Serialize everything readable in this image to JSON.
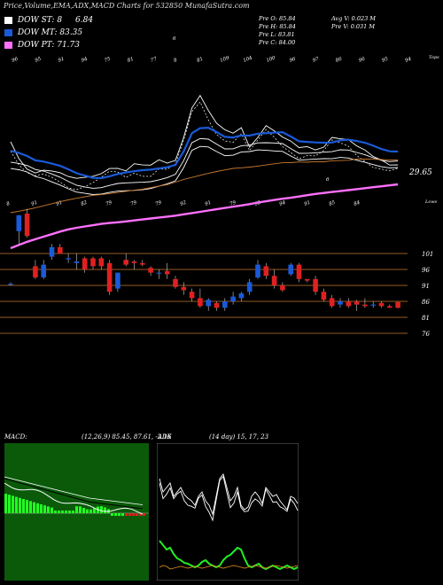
{
  "header": {
    "title": "Price,Volume,EMA,ADX,MACD Charts for 532850",
    "site": "MunafaSutra.com"
  },
  "legend": [
    {
      "label": "DOW ST: 8",
      "value": "6.84",
      "color": "#ffffff"
    },
    {
      "label": "DOW MT: 83.35",
      "value": "",
      "color": "#1a5ad8"
    },
    {
      "label": "DOW PT: 71.73",
      "value": "",
      "color": "#ff70ff"
    }
  ],
  "info": {
    "left": [
      "Pre  O: 85.84",
      "Pre  H: 85.84",
      "Pre  L: 83.81",
      "Pre  C: 84.00"
    ],
    "right": [
      "Avg V: 0.023 M",
      "Pre  V: 0.031 M"
    ]
  },
  "colors": {
    "ema_short": "#ffffff",
    "ema_mt": "#1a5ad8",
    "ema_pt": "#ff70ff",
    "ema_long": "#c77a30",
    "bull": "#1a5ad8",
    "bear": "#e02020",
    "level_line": "#c77a30",
    "macd_bg": "#0a5a0a",
    "macd_hist": "#22ff22",
    "adx_green": "#22ee22",
    "adx_orange": "#e08a20"
  },
  "chart_data": [
    {
      "type": "candlestick",
      "name": "price",
      "price_labels": [
        "101",
        "96",
        "91",
        "86",
        "81",
        "76"
      ],
      "volume_label_top": "29.65",
      "top_number_labels": [
        "96",
        "95",
        "91",
        "94",
        "75",
        "81",
        "77",
        "8",
        "81",
        "109",
        "104",
        "100",
        "96",
        "97",
        "86",
        "96",
        "95",
        "94"
      ],
      "top_extra_labels": [
        "6",
        "Tops"
      ],
      "mid_number_labels": [
        "8",
        "91",
        "91",
        "82",
        "79",
        "79",
        "79",
        "92",
        "91",
        "79",
        "92",
        "94",
        "91",
        "85",
        "84"
      ],
      "mid_extra_labels": [
        "6",
        "Lows"
      ],
      "candles": [
        {
          "o": 91.5,
          "h": 92.0,
          "l": 91.0,
          "c": 91.5
        },
        {
          "o": 108.0,
          "h": 113.0,
          "l": 104.0,
          "c": 113.0
        },
        {
          "o": 113.5,
          "h": 115.0,
          "l": 106.0,
          "c": 106.5
        },
        {
          "o": 97.0,
          "h": 99.0,
          "l": 93.0,
          "c": 93.5
        },
        {
          "o": 93.5,
          "h": 99.0,
          "l": 93.0,
          "c": 97.5
        },
        {
          "o": 100.0,
          "h": 104.0,
          "l": 99.0,
          "c": 103.0
        },
        {
          "o": 103.0,
          "h": 104.0,
          "l": 101.0,
          "c": 101.0
        },
        {
          "o": 99.5,
          "h": 101.0,
          "l": 98.0,
          "c": 99.5
        },
        {
          "o": 98.0,
          "h": 101.0,
          "l": 96.0,
          "c": 98.5
        },
        {
          "o": 99.5,
          "h": 100.0,
          "l": 95.0,
          "c": 96.0
        },
        {
          "o": 99.5,
          "h": 100.0,
          "l": 96.0,
          "c": 97.0
        },
        {
          "o": 99.5,
          "h": 100.0,
          "l": 96.0,
          "c": 97.0
        },
        {
          "o": 98.0,
          "h": 99.0,
          "l": 88.0,
          "c": 89.0
        },
        {
          "o": 90.0,
          "h": 95.0,
          "l": 89.0,
          "c": 95.0
        },
        {
          "o": 99.0,
          "h": 101.0,
          "l": 97.0,
          "c": 97.5
        },
        {
          "o": 98.5,
          "h": 99.0,
          "l": 96.0,
          "c": 98.0
        },
        {
          "o": 98.0,
          "h": 99.0,
          "l": 97.0,
          "c": 97.5
        },
        {
          "o": 96.5,
          "h": 97.0,
          "l": 94.0,
          "c": 95.0
        },
        {
          "o": 95.0,
          "h": 96.0,
          "l": 93.0,
          "c": 95.0
        },
        {
          "o": 95.5,
          "h": 98.0,
          "l": 93.0,
          "c": 94.5
        },
        {
          "o": 93.0,
          "h": 94.0,
          "l": 90.0,
          "c": 90.5
        },
        {
          "o": 90.5,
          "h": 92.0,
          "l": 88.0,
          "c": 89.5
        },
        {
          "o": 89.0,
          "h": 90.0,
          "l": 86.0,
          "c": 87.0
        },
        {
          "o": 87.0,
          "h": 90.0,
          "l": 84.0,
          "c": 84.5
        },
        {
          "o": 84.5,
          "h": 87.0,
          "l": 83.0,
          "c": 86.5
        },
        {
          "o": 85.5,
          "h": 86.0,
          "l": 83.0,
          "c": 84.0
        },
        {
          "o": 84.0,
          "h": 87.0,
          "l": 83.0,
          "c": 86.0
        },
        {
          "o": 86.0,
          "h": 89.0,
          "l": 85.0,
          "c": 87.5
        },
        {
          "o": 87.0,
          "h": 89.0,
          "l": 86.0,
          "c": 88.5
        },
        {
          "o": 89.0,
          "h": 93.0,
          "l": 88.0,
          "c": 92.0
        },
        {
          "o": 93.5,
          "h": 99.0,
          "l": 93.0,
          "c": 97.5
        },
        {
          "o": 97.0,
          "h": 98.0,
          "l": 93.0,
          "c": 94.0
        },
        {
          "o": 94.0,
          "h": 96.0,
          "l": 90.0,
          "c": 91.0
        },
        {
          "o": 91.0,
          "h": 92.0,
          "l": 89.0,
          "c": 89.5
        },
        {
          "o": 94.5,
          "h": 98.0,
          "l": 94.0,
          "c": 97.5
        },
        {
          "o": 97.5,
          "h": 98.0,
          "l": 92.0,
          "c": 93.0
        },
        {
          "o": 93.0,
          "h": 93.0,
          "l": 92.0,
          "c": 92.5
        },
        {
          "o": 93.0,
          "h": 94.0,
          "l": 88.0,
          "c": 89.0
        },
        {
          "o": 89.0,
          "h": 90.0,
          "l": 86.0,
          "c": 86.5
        },
        {
          "o": 87.0,
          "h": 88.0,
          "l": 84.0,
          "c": 84.5
        },
        {
          "o": 85.0,
          "h": 87.0,
          "l": 84.0,
          "c": 86.0
        },
        {
          "o": 86.0,
          "h": 87.0,
          "l": 84.0,
          "c": 84.5
        },
        {
          "o": 86.0,
          "h": 86.5,
          "l": 83.0,
          "c": 85.0
        },
        {
          "o": 85.0,
          "h": 87.0,
          "l": 84.0,
          "c": 84.5
        },
        {
          "o": 85.0,
          "h": 86.0,
          "l": 84.0,
          "c": 85.0
        },
        {
          "o": 85.5,
          "h": 86.0,
          "l": 84.0,
          "c": 84.5
        },
        {
          "o": 84.5,
          "h": 85.0,
          "l": 84.0,
          "c": 84.0
        },
        {
          "o": 85.8,
          "h": 85.8,
          "l": 83.8,
          "c": 84.0
        }
      ],
      "ema_pt": [
        90.0,
        91.0,
        92.0,
        92.8,
        93.6,
        94.4,
        95.2,
        95.9,
        96.4,
        96.8,
        97.2,
        97.6,
        97.9,
        98.1,
        98.4,
        98.7,
        99.0,
        99.3,
        99.6,
        99.9,
        100.2,
        100.6,
        101.0,
        101.4,
        101.8,
        102.2,
        102.6,
        103.0,
        103.4,
        103.8,
        104.3,
        104.7,
        105.1,
        105.5,
        105.8,
        106.2,
        106.6,
        107.0,
        107.3,
        107.6,
        107.9,
        108.2,
        108.5,
        108.8,
        109.1,
        109.4,
        109.7,
        110.0
      ]
    },
    {
      "type": "line",
      "name": "macd",
      "title": "MACD:",
      "params": "(12,26,9) 85.45, 87.61, -2.16"
    },
    {
      "type": "line",
      "name": "adx",
      "title": "ADX",
      "params": "(14 day) 15, 17, 23"
    }
  ]
}
